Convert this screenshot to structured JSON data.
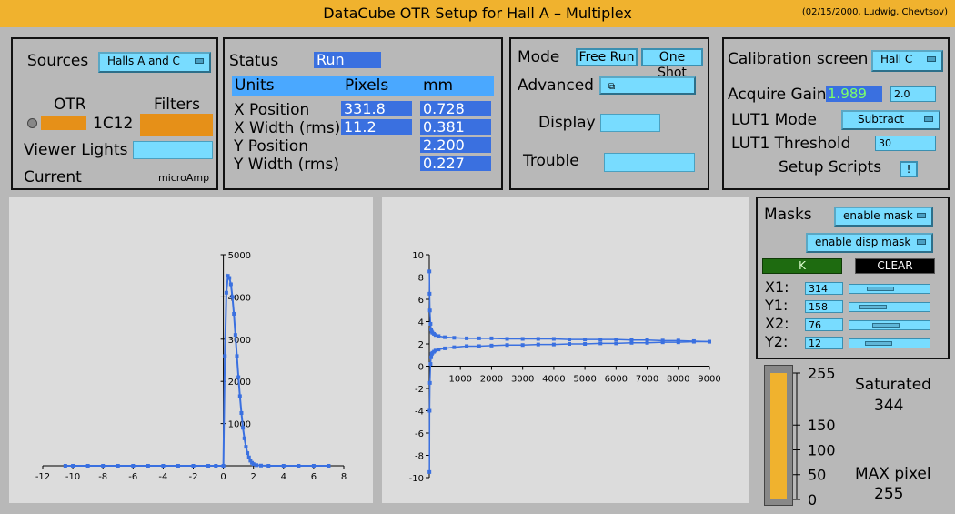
{
  "title": "DataCube  OTR  Setup  for  Hall A – Multiplex",
  "subtitle": "(02/15/2000, Ludwig, Chevtsov)",
  "sources": {
    "label": "Sources",
    "menu_value": "Halls A and C",
    "otr_label": "OTR",
    "filters_label": "Filters",
    "otr_value": "1C12",
    "viewer_lights_label": "Viewer Lights",
    "current_label": "Current",
    "current_unit": "microAmp",
    "colors": {
      "orange": "#e69018",
      "cyan": "#78dcff"
    }
  },
  "status": {
    "label": "Status",
    "value": "Run",
    "headers": [
      "Units",
      "Pixels",
      "mm"
    ],
    "rows": [
      {
        "label": "X Position",
        "pixels": "331.8",
        "mm": "0.728"
      },
      {
        "label": "X Width (rms)",
        "pixels": "11.2",
        "mm": "0.381"
      },
      {
        "label": "Y Position",
        "pixels": "",
        "mm": "2.200"
      },
      {
        "label": "Y Width (rms)",
        "pixels": "",
        "mm": "0.227"
      }
    ]
  },
  "mode": {
    "label": "Mode",
    "free_run": "Free Run",
    "one_shot": "One Shot",
    "advanced_label": "Advanced",
    "display_label": "Display",
    "trouble_label": "Trouble"
  },
  "calibration": {
    "label": "Calibration screen",
    "menu_value": "Hall C",
    "acquire_gain_label": "Acquire Gain",
    "acquire_gain_value": "1.989",
    "acquire_gain_entry": "2.0",
    "lut1_mode_label": "LUT1 Mode",
    "lut1_mode_value": "Subtract",
    "lut1_threshold_label": "LUT1 Threshold",
    "lut1_threshold_value": "30",
    "setup_scripts_label": "Setup Scripts",
    "setup_scripts_btn": "!"
  },
  "masks": {
    "label": "Masks",
    "enable_mask": "enable mask",
    "enable_disp_mask": "enable disp mask",
    "ok_label": "K",
    "clear_label": "CLEAR",
    "fields": [
      {
        "label": "X1:",
        "value": "314",
        "level": 0.35
      },
      {
        "label": "Y1:",
        "value": "158",
        "level": 0.2
      },
      {
        "label": "X2:",
        "value": "76",
        "level": 0.45
      },
      {
        "label": "Y2:",
        "value": "12",
        "level": 0.3
      }
    ]
  },
  "intensity": {
    "ticks": [
      "255",
      "150",
      "100",
      "50",
      "0"
    ],
    "tick_values": [
      255,
      150,
      100,
      50,
      0
    ],
    "saturated_label": "Saturated",
    "saturated_value": "344",
    "max_label": "MAX pixel",
    "max_value": "255",
    "fill_fraction": 1.0
  },
  "chart_data": [
    {
      "type": "line",
      "title": "",
      "xlabel": "",
      "ylabel": "",
      "xlim": [
        -12,
        8
      ],
      "ylim": [
        0,
        5000
      ],
      "xticks": [
        -12,
        -10,
        -8,
        -6,
        -4,
        -2,
        0,
        2,
        4,
        6,
        8
      ],
      "yticks": [
        1000,
        2000,
        3000,
        4000,
        5000
      ],
      "series": [
        {
          "x": [
            -10.5,
            -10,
            -9,
            -8,
            -7,
            -6,
            -5,
            -4,
            -3,
            -2,
            -1,
            -0.5,
            0,
            0.1,
            0.2,
            0.3,
            0.4,
            0.5,
            0.6,
            0.7,
            0.8,
            0.9,
            1.0,
            1.1,
            1.2,
            1.3,
            1.4,
            1.5,
            1.6,
            1.7,
            1.8,
            1.9,
            2.0,
            2.2,
            2.5,
            3,
            4,
            5,
            6,
            7
          ],
          "y": [
            0,
            0,
            0,
            0,
            0,
            0,
            0,
            0,
            0,
            0,
            0,
            0,
            0,
            2600,
            4100,
            4500,
            4450,
            4300,
            4000,
            3600,
            3100,
            2600,
            2100,
            1650,
            1250,
            900,
            650,
            450,
            300,
            200,
            120,
            70,
            40,
            15,
            5,
            0,
            0,
            0,
            0,
            0
          ]
        }
      ],
      "color": "#3a70e0"
    },
    {
      "type": "line",
      "title": "",
      "xlabel": "",
      "ylabel": "",
      "xlim": [
        0,
        9000
      ],
      "ylim": [
        -10,
        10
      ],
      "xticks": [
        1000,
        2000,
        3000,
        4000,
        5000,
        6000,
        7000,
        8000,
        9000
      ],
      "yticks": [
        -10,
        -8,
        -6,
        -4,
        -2,
        0,
        2,
        4,
        6,
        8,
        10
      ],
      "series": [
        {
          "name": "",
          "x": [
            5,
            10,
            20,
            40,
            60,
            80,
            100,
            150,
            200,
            300,
            500,
            800,
            1200,
            1600,
            2000,
            2500,
            3000,
            3500,
            4000,
            4500,
            5000,
            5500,
            6000,
            6500,
            7000,
            7500,
            8000,
            8500,
            9000
          ],
          "y": [
            8.5,
            6.5,
            5.0,
            3.8,
            3.3,
            3.1,
            3.0,
            2.9,
            2.8,
            2.7,
            2.6,
            2.55,
            2.5,
            2.5,
            2.5,
            2.45,
            2.45,
            2.45,
            2.45,
            2.4,
            2.4,
            2.4,
            2.4,
            2.35,
            2.35,
            2.3,
            2.3,
            2.25,
            2.2
          ]
        },
        {
          "name": "",
          "x": [
            5,
            10,
            20,
            40,
            60,
            80,
            100,
            150,
            200,
            300,
            500,
            800,
            1200,
            1600,
            2000,
            2500,
            3000,
            3500,
            4000,
            4500,
            5000,
            5500,
            6000,
            6500,
            7000,
            7500,
            8000,
            8500,
            9000
          ],
          "y": [
            -9.5,
            -4.0,
            -1.5,
            0.2,
            0.8,
            1.1,
            1.2,
            1.3,
            1.4,
            1.5,
            1.6,
            1.7,
            1.8,
            1.8,
            1.85,
            1.9,
            1.9,
            1.95,
            1.95,
            2.0,
            2.0,
            2.05,
            2.05,
            2.1,
            2.1,
            2.15,
            2.15,
            2.2,
            2.2
          ]
        }
      ],
      "color": "#3a70e0"
    }
  ]
}
